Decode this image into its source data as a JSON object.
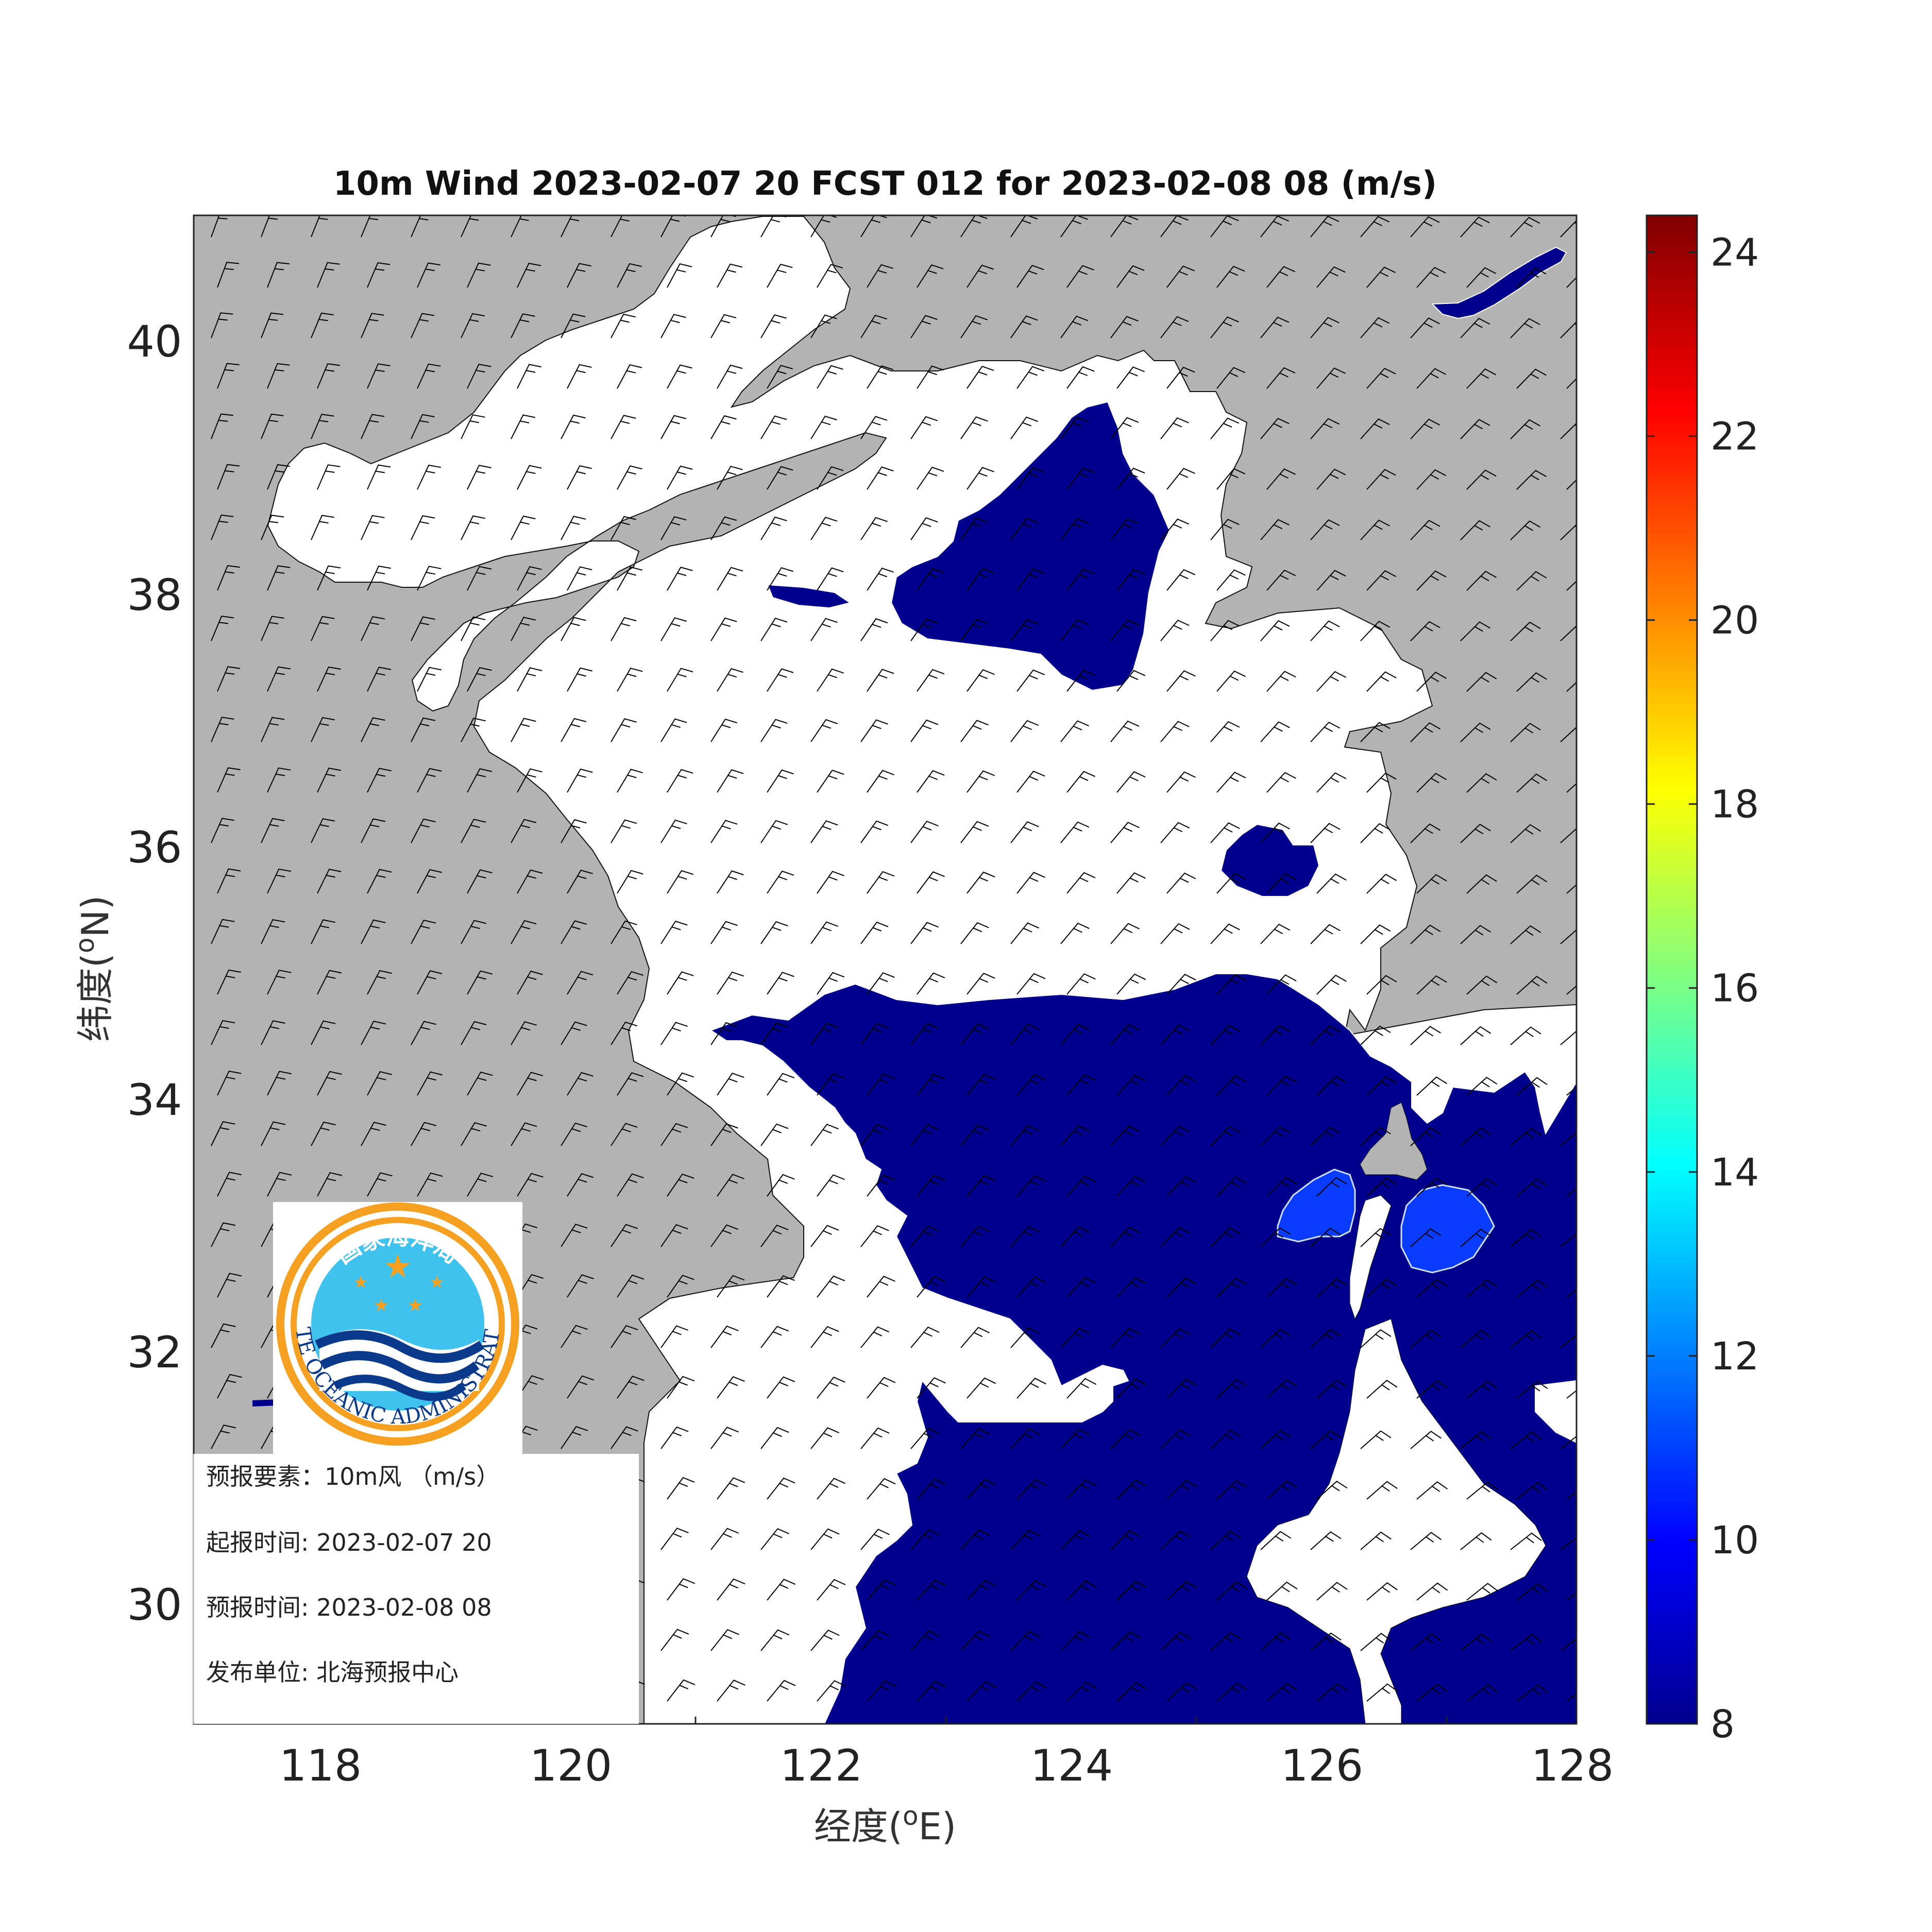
{
  "title": "10m Wind 2023-02-07 20 FCST 012 for 2023-02-08 08 (m/s)",
  "x_axis": {
    "label_prefix": "经度(",
    "label_sup": "o",
    "label_suffix": "E)",
    "ticks": [
      "118",
      "120",
      "122",
      "124",
      "126",
      "128"
    ]
  },
  "y_axis": {
    "label_prefix": "纬度(",
    "label_sup": "o",
    "label_suffix": "N)",
    "ticks": [
      "40",
      "38",
      "36",
      "34",
      "32",
      "30"
    ]
  },
  "colorbar": {
    "ticks": [
      "24",
      "22",
      "20",
      "18",
      "16",
      "14",
      "12",
      "10",
      "8"
    ],
    "min": 8,
    "max": 24.4,
    "colormap": "jet"
  },
  "info_box": {
    "element": "预报要素：10m风 （m/s）",
    "issue_time": "起报时间: 2023-02-07 20",
    "valid_time": "预报时间: 2023-02-08 08",
    "publisher": "发布单位:  北海预报中心"
  },
  "logo": {
    "cn_text": "国家海洋局",
    "en_text": "STATE OCEANIC ADMINISTRATION"
  },
  "colors": {
    "land": "#b3b3b3",
    "sea": "#ffffff",
    "wind_8_10": "#00008e",
    "wind_10_12": "#0a3cff",
    "barb": "#000000"
  },
  "wind_field": {
    "units": "m/s",
    "dominant_direction": "northwest to north",
    "speed_bands_shown": [
      "<8",
      "8-10",
      "10-12"
    ]
  }
}
